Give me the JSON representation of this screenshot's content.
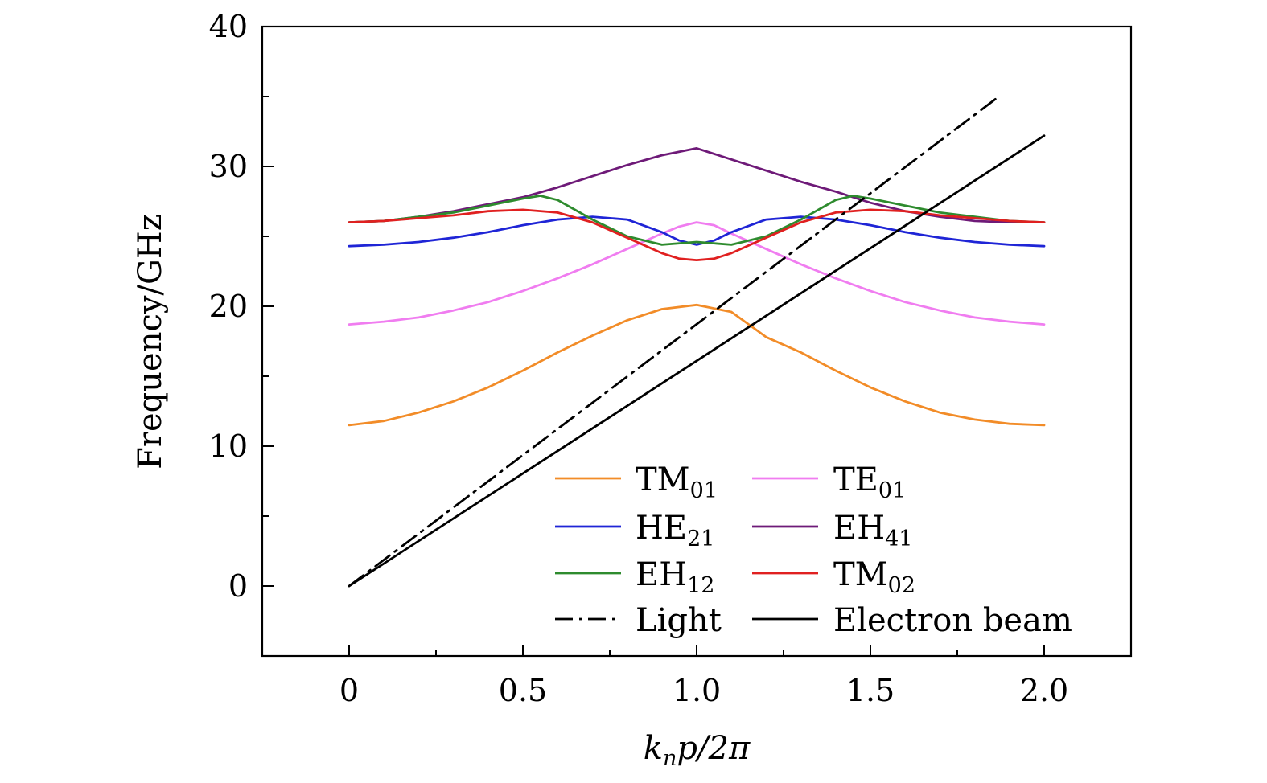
{
  "chart_data": {
    "type": "line",
    "xlabel": {
      "main": "k",
      "sub": "n",
      "rest": "p/2π"
    },
    "ylabel": "Frequency/GHz",
    "xlim": [
      -0.25,
      2.25
    ],
    "ylim": [
      -5,
      40
    ],
    "xticks": [
      {
        "value": 0,
        "label": "0"
      },
      {
        "value": 0.5,
        "label": "0.5"
      },
      {
        "value": 1.0,
        "label": "1.0"
      },
      {
        "value": 1.5,
        "label": "1.5"
      },
      {
        "value": 2.0,
        "label": "2.0"
      }
    ],
    "yticks": [
      {
        "value": 0,
        "label": "0"
      },
      {
        "value": 10,
        "label": "10"
      },
      {
        "value": 20,
        "label": "20"
      },
      {
        "value": 30,
        "label": "30"
      },
      {
        "value": 40,
        "label": "40"
      }
    ],
    "legend_position": "bottom-right",
    "series": [
      {
        "name": "TM01",
        "label_main": "TM",
        "label_sub": "01",
        "color": "#f28c28",
        "dash": "solid",
        "x": [
          0,
          0.1,
          0.2,
          0.3,
          0.4,
          0.5,
          0.6,
          0.7,
          0.8,
          0.9,
          1.0,
          1.1,
          1.2,
          1.3,
          1.4,
          1.5,
          1.6,
          1.7,
          1.8,
          1.9,
          2.0
        ],
        "y": [
          11.5,
          11.8,
          12.4,
          13.2,
          14.2,
          15.4,
          16.7,
          17.9,
          19.0,
          19.8,
          20.1,
          19.6,
          17.8,
          16.7,
          15.4,
          14.2,
          13.2,
          12.4,
          11.9,
          11.6,
          11.5
        ]
      },
      {
        "name": "TE01",
        "label_main": "TE",
        "label_sub": "01",
        "color": "#f07df0",
        "dash": "solid",
        "x": [
          0,
          0.1,
          0.2,
          0.3,
          0.4,
          0.5,
          0.6,
          0.7,
          0.8,
          0.9,
          0.95,
          1.0,
          1.05,
          1.1,
          1.2,
          1.3,
          1.4,
          1.5,
          1.6,
          1.7,
          1.8,
          1.9,
          2.0
        ],
        "y": [
          18.7,
          18.9,
          19.2,
          19.7,
          20.3,
          21.1,
          22.0,
          23.0,
          24.1,
          25.2,
          25.7,
          26.0,
          25.8,
          25.2,
          24.1,
          23.0,
          22.0,
          21.1,
          20.3,
          19.7,
          19.2,
          18.9,
          18.7
        ]
      },
      {
        "name": "HE21",
        "label_main": "HE",
        "label_sub": "21",
        "color": "#1f25d6",
        "dash": "solid",
        "x": [
          0,
          0.1,
          0.2,
          0.3,
          0.4,
          0.5,
          0.6,
          0.7,
          0.8,
          0.9,
          0.95,
          1.0,
          1.05,
          1.1,
          1.2,
          1.3,
          1.4,
          1.5,
          1.6,
          1.7,
          1.8,
          1.9,
          2.0
        ],
        "y": [
          24.3,
          24.4,
          24.6,
          24.9,
          25.3,
          25.8,
          26.2,
          26.4,
          26.2,
          25.3,
          24.7,
          24.4,
          24.7,
          25.3,
          26.2,
          26.4,
          26.2,
          25.8,
          25.3,
          24.9,
          24.6,
          24.4,
          24.3
        ]
      },
      {
        "name": "EH41",
        "label_main": "EH",
        "label_sub": "41",
        "color": "#6e1a78",
        "dash": "solid",
        "x": [
          0,
          0.1,
          0.2,
          0.3,
          0.4,
          0.5,
          0.6,
          0.7,
          0.8,
          0.9,
          1.0,
          1.1,
          1.2,
          1.3,
          1.4,
          1.5,
          1.6,
          1.7,
          1.8,
          1.9,
          2.0
        ],
        "y": [
          26.0,
          26.1,
          26.4,
          26.8,
          27.3,
          27.8,
          28.5,
          29.3,
          30.1,
          30.8,
          31.3,
          30.5,
          29.7,
          28.9,
          28.2,
          27.4,
          26.8,
          26.4,
          26.1,
          26.0,
          26.0
        ]
      },
      {
        "name": "EH12",
        "label_main": "EH",
        "label_sub": "12",
        "color": "#2e8b2e",
        "dash": "solid",
        "x": [
          0,
          0.1,
          0.2,
          0.3,
          0.4,
          0.5,
          0.55,
          0.6,
          0.7,
          0.8,
          0.9,
          1.0,
          1.1,
          1.2,
          1.3,
          1.4,
          1.45,
          1.5,
          1.6,
          1.7,
          1.8,
          1.9,
          2.0
        ],
        "y": [
          26.0,
          26.1,
          26.4,
          26.7,
          27.2,
          27.7,
          27.9,
          27.6,
          26.2,
          25.0,
          24.4,
          24.6,
          24.4,
          25.0,
          26.2,
          27.6,
          27.9,
          27.7,
          27.2,
          26.7,
          26.4,
          26.1,
          26.0
        ]
      },
      {
        "name": "TM02",
        "label_main": "TM",
        "label_sub": "02",
        "color": "#e02020",
        "dash": "solid",
        "x": [
          0,
          0.1,
          0.2,
          0.3,
          0.4,
          0.5,
          0.6,
          0.7,
          0.8,
          0.9,
          0.95,
          1.0,
          1.05,
          1.1,
          1.2,
          1.3,
          1.4,
          1.5,
          1.6,
          1.7,
          1.8,
          1.9,
          2.0
        ],
        "y": [
          26.0,
          26.1,
          26.3,
          26.5,
          26.8,
          26.9,
          26.7,
          26.0,
          24.9,
          23.8,
          23.4,
          23.3,
          23.4,
          23.8,
          24.9,
          26.0,
          26.7,
          26.9,
          26.8,
          26.5,
          26.3,
          26.1,
          26.0
        ]
      },
      {
        "name": "Light",
        "label_main": "Light",
        "label_sub": "",
        "color": "#000000",
        "dash": "dashdot",
        "x": [
          0,
          1.87
        ],
        "y": [
          0,
          35.0
        ]
      },
      {
        "name": "Electron beam",
        "label_main": "Electron beam",
        "label_sub": "",
        "color": "#000000",
        "dash": "solid",
        "x": [
          0,
          2.0
        ],
        "y": [
          0,
          32.2
        ]
      }
    ]
  }
}
